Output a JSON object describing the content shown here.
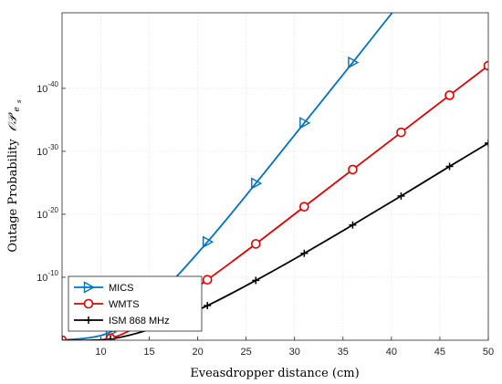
{
  "chart_data": {
    "type": "line",
    "xlabel": "Eveasdropper distance (cm)",
    "ylabel": "Outage Probability",
    "ylabel_symbol": "𝒪𝒫",
    "ylabel_subscript": "e",
    "ylabel_subsub": "s",
    "xlim": [
      6,
      50
    ],
    "ylim_log10": [
      -52,
      0
    ],
    "yscale": "log",
    "grid": true,
    "legend_position": "bottom-left",
    "x_ticks": [
      "10",
      "15",
      "20",
      "25",
      "30",
      "35",
      "40",
      "45",
      "50"
    ],
    "x_tick_values": [
      10,
      15,
      20,
      25,
      30,
      35,
      40,
      45,
      50
    ],
    "y_ticks": [
      {
        "base": "10",
        "exp": "-10",
        "log10": -10
      },
      {
        "base": "10",
        "exp": "-20",
        "log10": -20
      },
      {
        "base": "10",
        "exp": "-30",
        "log10": -30
      },
      {
        "base": "10",
        "exp": "-40",
        "log10": -40
      }
    ],
    "series": [
      {
        "name": "MICS",
        "color": "#0072BD",
        "marker": "triangle-right",
        "x": [
          6,
          11,
          16,
          21,
          26,
          31,
          36,
          41,
          46,
          50
        ],
        "log10_y": [
          0,
          -1.3,
          -7.3,
          -15.6,
          -24.9,
          -34.5,
          -44.1,
          -53.8,
          -63.3,
          -70.9
        ]
      },
      {
        "name": "WMTS",
        "color": "#E00000",
        "marker": "circle",
        "x": [
          6,
          11,
          16,
          21,
          26,
          31,
          36,
          41,
          46,
          50
        ],
        "log10_y": [
          0,
          -0.3,
          -4.2,
          -9.6,
          -15.3,
          -21.2,
          -27.1,
          -33.0,
          -38.9,
          -43.6
        ]
      },
      {
        "name": "ISM 868 MHz",
        "color": "#000000",
        "marker": "plus",
        "x": [
          6,
          11,
          16,
          21,
          26,
          31,
          36,
          41,
          46,
          50
        ],
        "log10_y": [
          0,
          -0.2,
          -2.2,
          -5.5,
          -9.5,
          -13.8,
          -18.3,
          -22.9,
          -27.6,
          -31.3
        ]
      }
    ]
  }
}
